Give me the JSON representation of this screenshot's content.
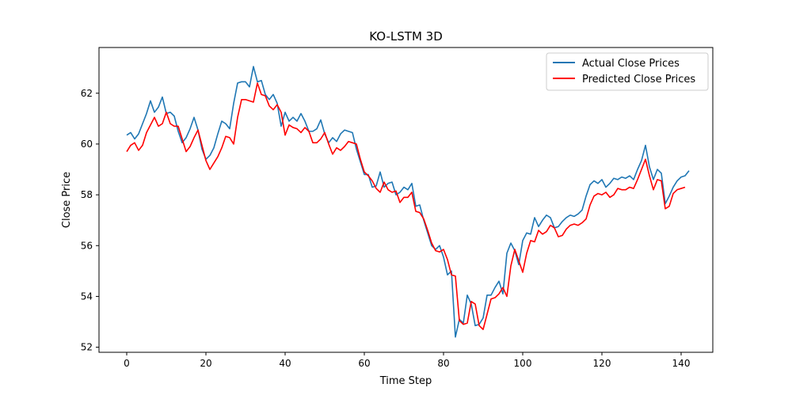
{
  "chart_data": {
    "type": "line",
    "title": "KO-LSTM 3D",
    "xlabel": "Time Step",
    "ylabel": "Close Price",
    "xlim": [
      -7,
      148
    ],
    "ylim": [
      51.8,
      63.8
    ],
    "xticks": [
      0,
      20,
      40,
      60,
      80,
      100,
      120,
      140
    ],
    "yticks": [
      52,
      54,
      56,
      58,
      60,
      62
    ],
    "grid": false,
    "legend_position": "top-right",
    "series": [
      {
        "name": "Actual Close Prices",
        "color": "#1f77b4",
        "values": [
          60.35,
          60.45,
          60.2,
          60.4,
          60.8,
          61.2,
          61.7,
          61.25,
          61.45,
          61.85,
          61.2,
          61.25,
          61.1,
          60.5,
          60.05,
          60.25,
          60.6,
          61.05,
          60.55,
          59.8,
          59.4,
          59.55,
          59.85,
          60.4,
          60.9,
          60.8,
          60.6,
          61.6,
          62.4,
          62.45,
          62.45,
          62.25,
          63.05,
          62.45,
          62.5,
          61.95,
          61.75,
          61.95,
          61.6,
          60.7,
          61.25,
          60.9,
          61.05,
          60.9,
          61.2,
          60.9,
          60.5,
          60.5,
          60.6,
          60.95,
          60.4,
          60.05,
          60.25,
          60.1,
          60.4,
          60.55,
          60.5,
          60.45,
          59.8,
          59.3,
          58.8,
          58.8,
          58.3,
          58.35,
          58.9,
          58.3,
          58.45,
          58.5,
          58.0,
          58.1,
          58.3,
          58.2,
          58.45,
          57.55,
          57.6,
          57.0,
          56.5,
          56.0,
          55.85,
          56.0,
          55.55,
          54.85,
          55.0,
          52.4,
          53.1,
          52.95,
          54.05,
          53.7,
          52.85,
          52.9,
          53.15,
          54.05,
          54.05,
          54.35,
          54.6,
          54.1,
          55.7,
          56.1,
          55.8,
          55.25,
          56.2,
          56.5,
          56.45,
          57.1,
          56.75,
          57.0,
          57.2,
          57.1,
          56.7,
          56.75,
          56.95,
          57.1,
          57.2,
          57.15,
          57.25,
          57.4,
          57.95,
          58.4,
          58.55,
          58.45,
          58.6,
          58.3,
          58.45,
          58.65,
          58.6,
          58.7,
          58.65,
          58.75,
          58.6,
          59.0,
          59.35,
          59.95,
          59.1,
          58.6,
          59.0,
          58.85,
          57.65,
          57.95,
          58.3,
          58.55,
          58.7,
          58.75,
          58.95
        ]
      },
      {
        "name": "Predicted Close Prices",
        "color": "#ff0000",
        "values": [
          59.7,
          59.95,
          60.05,
          59.75,
          59.95,
          60.45,
          60.75,
          61.05,
          60.7,
          60.8,
          61.25,
          60.8,
          60.7,
          60.7,
          60.2,
          59.7,
          59.9,
          60.25,
          60.55,
          59.95,
          59.35,
          59.0,
          59.25,
          59.5,
          59.85,
          60.3,
          60.25,
          60.0,
          61.05,
          61.75,
          61.75,
          61.7,
          61.65,
          62.4,
          61.95,
          61.9,
          61.5,
          61.35,
          61.55,
          61.25,
          60.35,
          60.75,
          60.65,
          60.6,
          60.45,
          60.65,
          60.5,
          60.05,
          60.05,
          60.2,
          60.45,
          60.0,
          59.6,
          59.85,
          59.75,
          59.9,
          60.1,
          60.05,
          60.0,
          59.4,
          58.9,
          58.75,
          58.55,
          58.25,
          58.1,
          58.5,
          58.2,
          58.1,
          58.15,
          57.7,
          57.9,
          57.9,
          58.1,
          57.35,
          57.3,
          57.05,
          56.6,
          56.1,
          55.8,
          55.75,
          55.85,
          55.45,
          54.85,
          54.8,
          53.05,
          52.9,
          52.95,
          53.8,
          53.7,
          52.85,
          52.7,
          53.3,
          53.9,
          53.95,
          54.1,
          54.35,
          54.0,
          55.2,
          55.85,
          55.4,
          54.95,
          55.7,
          56.2,
          56.15,
          56.6,
          56.45,
          56.55,
          56.8,
          56.7,
          56.35,
          56.4,
          56.65,
          56.8,
          56.85,
          56.8,
          56.9,
          57.05,
          57.6,
          57.95,
          58.05,
          58.0,
          58.1,
          57.9,
          58.0,
          58.25,
          58.2,
          58.2,
          58.3,
          58.25,
          58.6,
          59.0,
          59.4,
          58.75,
          58.2,
          58.6,
          58.55,
          57.45,
          57.55,
          58.05,
          58.2,
          58.25,
          58.3
        ]
      }
    ]
  }
}
